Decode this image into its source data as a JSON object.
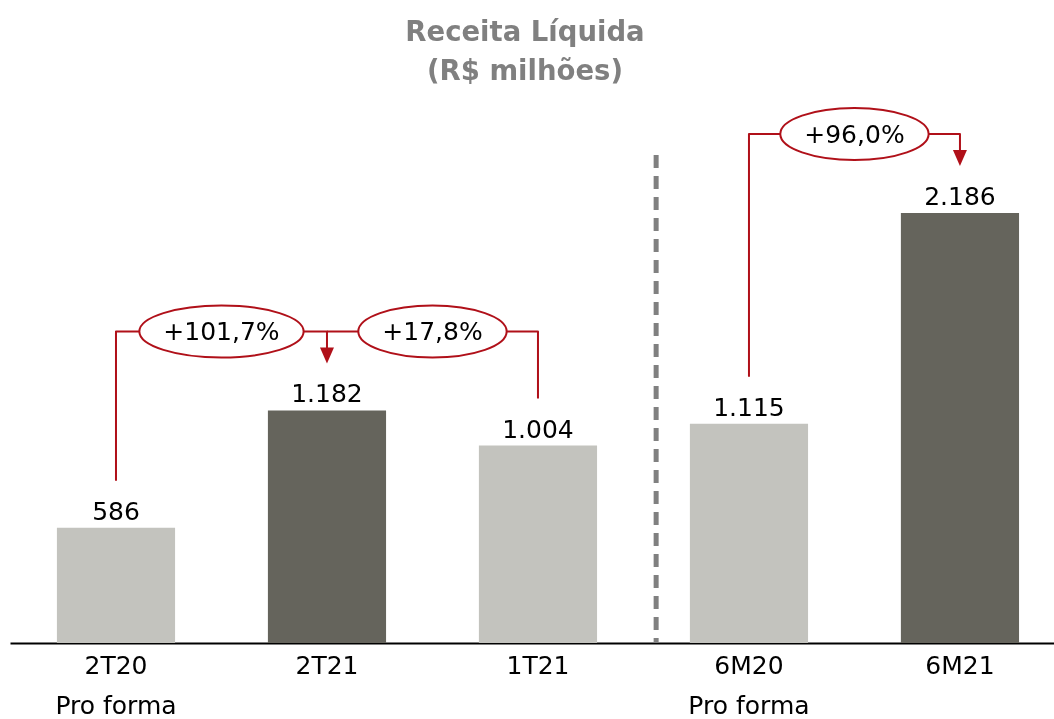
{
  "chart_data": {
    "type": "bar",
    "title": "Receita Líquida\n(R$ milhões)",
    "categories": [
      "2T20\nPro forma",
      "2T21",
      "1T21",
      "6M20\nPro forma",
      "6M21"
    ],
    "values": [
      586,
      1182,
      1004,
      1115,
      2186
    ],
    "value_labels": [
      "586",
      "1.182",
      "1.004",
      "1.115",
      "2.186"
    ],
    "colors": [
      "#c3c3be",
      "#65645c",
      "#c3c3be",
      "#c3c3be",
      "#65645c"
    ],
    "annotations": [
      "+101,7%",
      "+17,8%",
      "+96,0%"
    ]
  }
}
